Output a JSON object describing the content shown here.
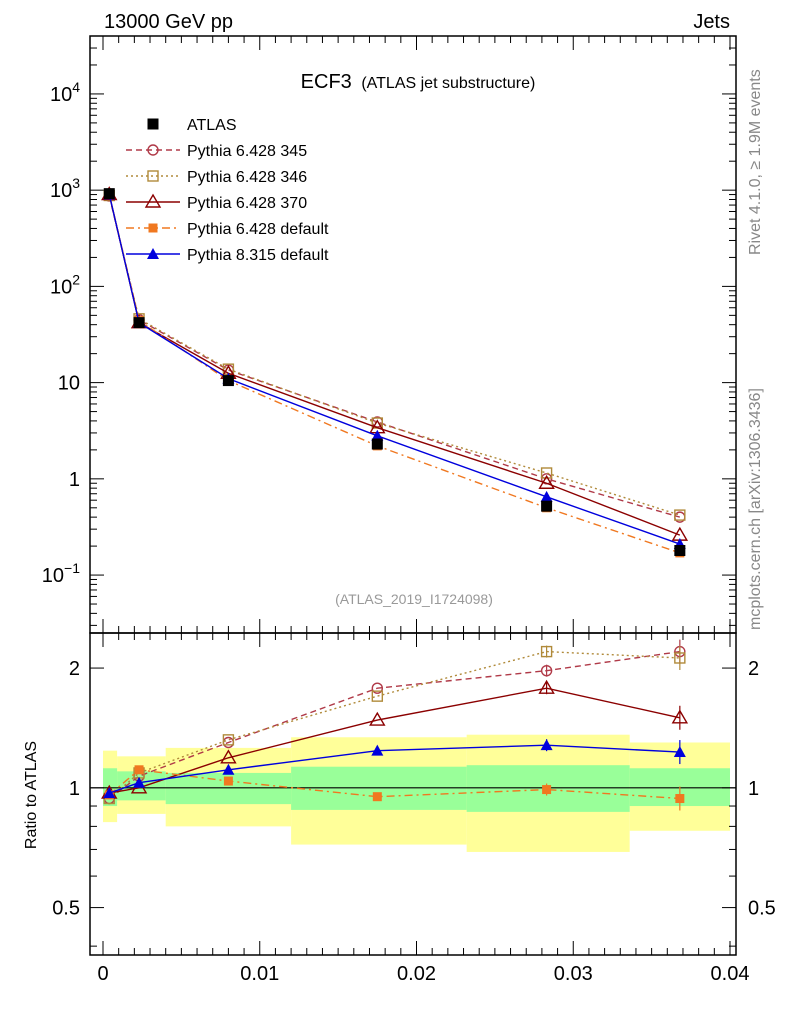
{
  "header": {
    "left": "13000 GeV pp",
    "right": "Jets"
  },
  "side_text": {
    "rivet": "Rivet 4.1.0, ≥ 1.9M events",
    "mcplots": "mcplots.cern.ch [arXiv:1306.3436]"
  },
  "plot_title": {
    "main": "ECF3",
    "sub": "(ATLAS jet substructure)"
  },
  "analysis_label": "(ATLAS_2019_I1724098)",
  "colors": {
    "atlas": "#000000",
    "p345": "#b03a48",
    "p346": "#b08a3a",
    "p370": "#8b0000",
    "p6def": "#f07820",
    "p8def": "#0000dd",
    "band_yellow": "#ffff99",
    "band_green": "#99ff99"
  },
  "chart_data": [
    {
      "type": "line",
      "title": "ECF3 (ATLAS jet substructure)",
      "xlabel": "",
      "ylabel": "",
      "yscale": "log",
      "xlim": [
        -0.0015,
        0.04
      ],
      "ylim": [
        0.025,
        40000
      ],
      "x": [
        0.0004,
        0.0023,
        0.008,
        0.0175,
        0.0283,
        0.0368
      ],
      "yticks": [
        {
          "v": 0.1,
          "base": "10",
          "exp": "−1"
        },
        {
          "v": 1,
          "base": "1",
          "exp": ""
        },
        {
          "v": 10,
          "base": "10",
          "exp": ""
        },
        {
          "v": 100,
          "base": "10",
          "exp": "2"
        },
        {
          "v": 1000,
          "base": "10",
          "exp": "3"
        },
        {
          "v": 10000,
          "base": "10",
          "exp": "4"
        }
      ],
      "series": [
        {
          "key": "atlas",
          "name": "ATLAS",
          "values": [
            920,
            42,
            10.5,
            2.3,
            0.52,
            0.18
          ]
        },
        {
          "key": "p345",
          "name": "Pythia 6.428 345",
          "values": [
            870,
            45,
            13.5,
            3.9,
            1.0,
            0.4
          ]
        },
        {
          "key": "p346",
          "name": "Pythia 6.428 346",
          "values": [
            880,
            46,
            13.8,
            3.8,
            1.15,
            0.42
          ]
        },
        {
          "key": "p370",
          "name": "Pythia 6.428 370",
          "values": [
            900,
            42,
            12.5,
            3.4,
            0.9,
            0.26
          ]
        },
        {
          "key": "p6def",
          "name": "Pythia 6.428 default",
          "values": [
            910,
            44,
            10.5,
            2.2,
            0.5,
            0.17
          ]
        },
        {
          "key": "p8def",
          "name": "Pythia 8.315 default",
          "values": [
            905,
            42,
            11.0,
            2.8,
            0.65,
            0.21
          ]
        }
      ]
    },
    {
      "type": "line",
      "title": "",
      "xlabel": "",
      "ylabel": "Ratio to ATLAS",
      "yscale": "log",
      "ylim": [
        0.38,
        2.45
      ],
      "x": [
        0.0004,
        0.0023,
        0.008,
        0.0175,
        0.0283,
        0.0368
      ],
      "xticks": [
        {
          "v": 0,
          "label": "0"
        },
        {
          "v": 0.01,
          "label": "0.01"
        },
        {
          "v": 0.02,
          "label": "0.02"
        },
        {
          "v": 0.03,
          "label": "0.03"
        },
        {
          "v": 0.04,
          "label": "0.04"
        }
      ],
      "yticks": [
        {
          "v": 0.5,
          "label": "0.5"
        },
        {
          "v": 1,
          "label": "1"
        },
        {
          "v": 2,
          "label": "2"
        }
      ],
      "bands": [
        {
          "x0": 0.0,
          "x1": 0.0009,
          "yellow": [
            0.82,
            1.24
          ],
          "green": [
            0.9,
            1.12
          ]
        },
        {
          "x0": 0.0009,
          "x1": 0.004,
          "yellow": [
            0.86,
            1.2
          ],
          "green": [
            0.93,
            1.1
          ]
        },
        {
          "x0": 0.004,
          "x1": 0.012,
          "yellow": [
            0.8,
            1.26
          ],
          "green": [
            0.91,
            1.09
          ]
        },
        {
          "x0": 0.012,
          "x1": 0.0232,
          "yellow": [
            0.72,
            1.34
          ],
          "green": [
            0.88,
            1.13
          ]
        },
        {
          "x0": 0.0232,
          "x1": 0.0336,
          "yellow": [
            0.69,
            1.36
          ],
          "green": [
            0.87,
            1.14
          ]
        },
        {
          "x0": 0.0336,
          "x1": 0.04,
          "yellow": [
            0.78,
            1.3
          ],
          "green": [
            0.9,
            1.12
          ]
        }
      ],
      "series": [
        {
          "key": "p345",
          "name": "Pythia 6.428 345",
          "values": [
            0.94,
            1.07,
            1.3,
            1.78,
            1.97,
            2.2
          ]
        },
        {
          "key": "p346",
          "name": "Pythia 6.428 346",
          "values": [
            0.94,
            1.09,
            1.32,
            1.7,
            2.2,
            2.12
          ]
        },
        {
          "key": "p370",
          "name": "Pythia 6.428 370",
          "values": [
            0.97,
            1.0,
            1.19,
            1.48,
            1.78,
            1.5
          ]
        },
        {
          "key": "p6def",
          "name": "Pythia 6.428 default",
          "values": [
            0.96,
            1.11,
            1.04,
            0.95,
            0.99,
            0.94
          ]
        },
        {
          "key": "p8def",
          "name": "Pythia 8.315 default",
          "values": [
            0.97,
            1.03,
            1.11,
            1.24,
            1.28,
            1.23
          ]
        }
      ]
    }
  ]
}
